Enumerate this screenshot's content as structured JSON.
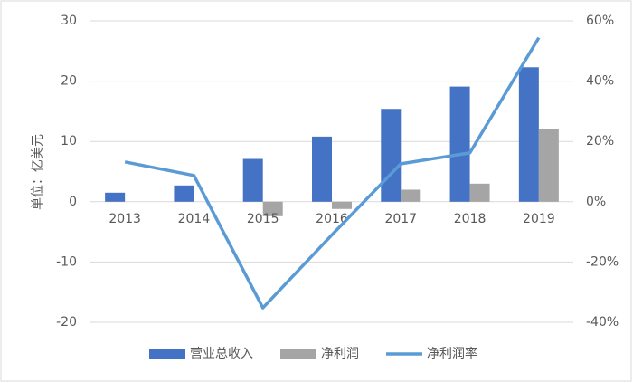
{
  "chart_data": {
    "type": "bar-line",
    "y_label": "单位：亿美元",
    "categories": [
      "2013",
      "2014",
      "2015",
      "2016",
      "2017",
      "2018",
      "2019"
    ],
    "series": [
      {
        "name": "营业总收入",
        "color": "#4472c4",
        "type": "bar",
        "values": [
          1.5,
          2.7,
          7.1,
          10.8,
          15.4,
          19.1,
          22.3
        ]
      },
      {
        "name": "净利润",
        "color": "#a5a5a5",
        "type": "bar",
        "values": [
          0,
          0,
          -2.4,
          -1.2,
          2.0,
          3.0,
          12.0
        ]
      },
      {
        "name": "净利润率",
        "color": "#5b9bd5",
        "type": "line",
        "axis": "y2",
        "values": [
          13.2,
          8.7,
          -35.2,
          -11,
          12.6,
          16.2,
          54.4
        ]
      }
    ],
    "ylim": [
      -20,
      30
    ],
    "yticks": [
      -20,
      -10,
      0,
      10,
      20,
      30
    ],
    "y2lim": [
      -40,
      60
    ],
    "y2ticks": [
      {
        "value": -40,
        "label": "-40%"
      },
      {
        "value": -20,
        "label": "-20%"
      },
      {
        "value": 0,
        "label": "0%"
      },
      {
        "value": 20,
        "label": "20%"
      },
      {
        "value": 40,
        "label": "40%"
      },
      {
        "value": 60,
        "label": "60%"
      }
    ],
    "grid": true
  }
}
